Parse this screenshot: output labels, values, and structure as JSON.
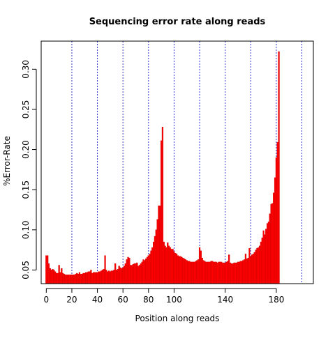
{
  "chart_data": {
    "type": "bar",
    "title": "Sequencing error rate along reads",
    "xlabel": "Position along reads",
    "ylabel": "%Error-Rate",
    "xlim": [
      -4,
      209
    ],
    "ylim": [
      0.033,
      0.335
    ],
    "xticks": [
      0,
      20,
      40,
      60,
      80,
      100,
      140,
      180
    ],
    "yticks": [
      0.05,
      0.1,
      0.15,
      0.2,
      0.25,
      0.3
    ],
    "ytick_labels": [
      "0.05",
      "0.10",
      "0.15",
      "0.20",
      "0.25",
      "0.30"
    ],
    "vlines": [
      20,
      40,
      60,
      80,
      100,
      120,
      140,
      160,
      180,
      200
    ],
    "bar_color": "#ff0000",
    "vline_color": "#3333cc",
    "x_start": 0,
    "values": [
      0.068,
      0.068,
      0.058,
      0.052,
      0.05,
      0.051,
      0.05,
      0.048,
      0.046,
      0.046,
      0.056,
      0.047,
      0.052,
      0.046,
      0.045,
      0.044,
      0.044,
      0.044,
      0.044,
      0.044,
      0.044,
      0.044,
      0.044,
      0.045,
      0.046,
      0.045,
      0.047,
      0.045,
      0.045,
      0.046,
      0.046,
      0.047,
      0.047,
      0.048,
      0.048,
      0.05,
      0.046,
      0.047,
      0.047,
      0.047,
      0.047,
      0.048,
      0.048,
      0.049,
      0.05,
      0.051,
      0.068,
      0.05,
      0.048,
      0.049,
      0.048,
      0.049,
      0.049,
      0.05,
      0.058,
      0.05,
      0.051,
      0.055,
      0.053,
      0.052,
      0.053,
      0.055,
      0.058,
      0.063,
      0.066,
      0.065,
      0.056,
      0.056,
      0.057,
      0.058,
      0.058,
      0.059,
      0.055,
      0.056,
      0.058,
      0.06,
      0.063,
      0.062,
      0.064,
      0.066,
      0.068,
      0.07,
      0.074,
      0.078,
      0.085,
      0.092,
      0.1,
      0.113,
      0.13,
      0.13,
      0.211,
      0.228,
      0.085,
      0.08,
      0.078,
      0.084,
      0.08,
      0.078,
      0.076,
      0.076,
      0.073,
      0.071,
      0.07,
      0.068,
      0.067,
      0.067,
      0.066,
      0.065,
      0.064,
      0.063,
      0.062,
      0.061,
      0.061,
      0.06,
      0.06,
      0.06,
      0.06,
      0.061,
      0.062,
      0.063,
      0.078,
      0.074,
      0.065,
      0.062,
      0.061,
      0.06,
      0.06,
      0.06,
      0.06,
      0.061,
      0.061,
      0.06,
      0.06,
      0.06,
      0.059,
      0.06,
      0.06,
      0.06,
      0.059,
      0.059,
      0.059,
      0.06,
      0.061,
      0.069,
      0.059,
      0.058,
      0.058,
      0.059,
      0.059,
      0.059,
      0.06,
      0.06,
      0.061,
      0.061,
      0.062,
      0.063,
      0.07,
      0.064,
      0.065,
      0.077,
      0.067,
      0.069,
      0.07,
      0.072,
      0.075,
      0.077,
      0.078,
      0.08,
      0.085,
      0.09,
      0.099,
      0.094,
      0.101,
      0.108,
      0.11,
      0.12,
      0.132,
      0.133,
      0.146,
      0.165,
      0.19,
      0.209,
      0.322
    ]
  }
}
